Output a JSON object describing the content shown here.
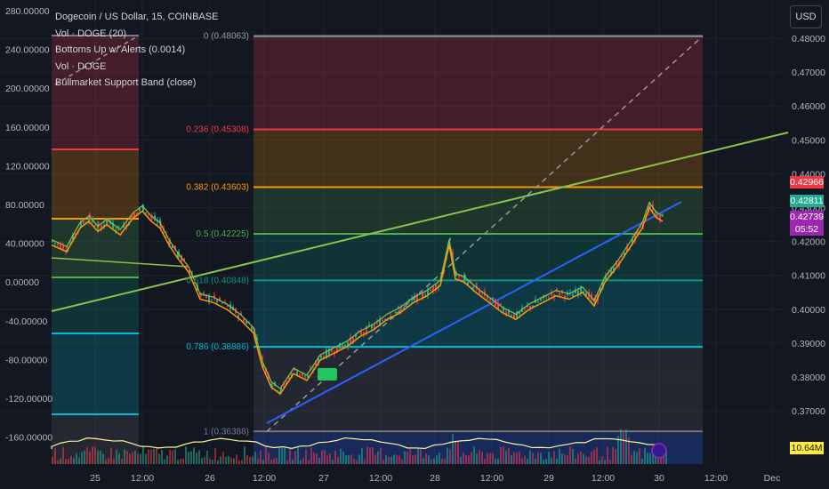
{
  "header": {
    "symbol_title": "Dogecoin / US Dollar, 15, COINBASE",
    "indicators": [
      "Vol · DOGE (20)",
      "Bottoms Up w/ Alerts (0.0014)",
      "Vol · DOGE",
      "Bullmarket Support Band (close)"
    ],
    "currency_button": "USD"
  },
  "left_axis": [
    "280.00000",
    "240.00000",
    "200.00000",
    "160.00000",
    "120.00000",
    "80.00000",
    "40.00000",
    "0.00000",
    "-40.00000",
    "-80.00000",
    "-120.00000",
    "-160.00000"
  ],
  "right_axis": [
    "0.48000",
    "0.47000",
    "0.46000",
    "0.45000",
    "0.44000",
    "0.43000",
    "0.42000",
    "0.41000",
    "0.40000",
    "0.39000",
    "0.38000",
    "0.37000"
  ],
  "time_axis": [
    "25",
    "12:00",
    "26",
    "12:00",
    "27",
    "12:00",
    "28",
    "12:00",
    "29",
    "12:00",
    "30",
    "12:00",
    "Dec"
  ],
  "fib_levels": [
    {
      "label": "0 (0.48063)",
      "value": 0.48063,
      "color": "#9598a1"
    },
    {
      "label": "0.236 (0.45308)",
      "value": 0.45308,
      "color": "#f23645"
    },
    {
      "label": "0.382 (0.43603)",
      "value": 0.43603,
      "color": "#ff9800"
    },
    {
      "label": "0.5 (0.42225)",
      "value": 0.42225,
      "color": "#4caf50"
    },
    {
      "label": "0.618 (0.40848)",
      "value": 0.40848,
      "color": "#089981"
    },
    {
      "label": "0.786 (0.38886)",
      "value": 0.38886,
      "color": "#00bcd4"
    },
    {
      "label": "1 (0.36388)",
      "value": 0.36388,
      "color": "#787b86"
    }
  ],
  "price_tags": [
    {
      "text": "0.42966",
      "color": "#f23645"
    },
    {
      "text": "0.42811",
      "color": "#22ab94"
    },
    {
      "text": "0.42739",
      "color": "#9c27b0"
    },
    {
      "text": "05:52",
      "color": "#9c27b0"
    }
  ],
  "volume_tag": "10.64M",
  "colors": {
    "background": "#131722",
    "up": "#22ab94",
    "down": "#f23645",
    "trend_green": "#8bc34a",
    "trend_blue": "#2962ff",
    "band_orange": "#ff9800"
  }
}
